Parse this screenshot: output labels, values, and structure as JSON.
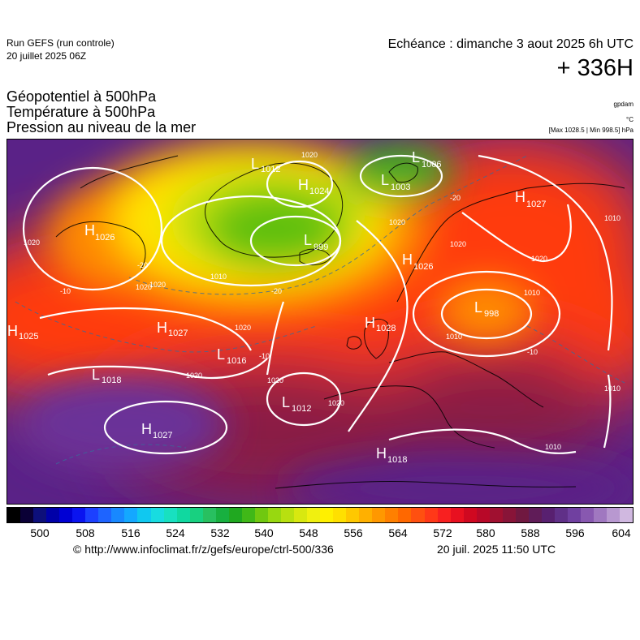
{
  "header": {
    "run_title": "Run GEFS (run controle)",
    "run_date": "20 juillet 2025 06Z",
    "valid_line": "Echéance : dimanche 3 aout 2025 6h UTC",
    "lead_time": "+ 336H"
  },
  "parameters": [
    {
      "label": "Géopotentiel à 500hPa",
      "unit": "gpdam"
    },
    {
      "label": "Température à 500hPa",
      "unit": "°C"
    },
    {
      "label": "Pression au niveau de la mer",
      "unit": "[Max 1028.5 | Min 998.5] hPa"
    }
  ],
  "pressure_extremes": {
    "max": 1028.5,
    "min": 998.5
  },
  "colorbar": {
    "ticks": [
      "500",
      "508",
      "516",
      "524",
      "532",
      "540",
      "548",
      "556",
      "564",
      "572",
      "580",
      "588",
      "596",
      "604"
    ],
    "colors": [
      "#000000",
      "#0a0036",
      "#0d0f7a",
      "#0000a8",
      "#0000d4",
      "#0a14f0",
      "#1c40ff",
      "#1e64ff",
      "#1888ff",
      "#14a8ff",
      "#10c8f0",
      "#18dce0",
      "#18e0c0",
      "#10d8a0",
      "#18d080",
      "#28c060",
      "#18b040",
      "#20a820",
      "#40b818",
      "#70c810",
      "#98d810",
      "#b8e010",
      "#d8e810",
      "#f0f010",
      "#fff000",
      "#ffe000",
      "#ffc800",
      "#ffb000",
      "#ff9800",
      "#ff8000",
      "#ff6800",
      "#ff5010",
      "#ff3818",
      "#f82020",
      "#e81020",
      "#d00820",
      "#b80828",
      "#a01030",
      "#881438",
      "#701840",
      "#601c58",
      "#582070",
      "#603088",
      "#7040a0",
      "#8858b0",
      "#a078c0",
      "#b898d0",
      "#d0b8e0"
    ]
  },
  "map": {
    "pressure_systems": [
      {
        "type": "H",
        "value": "1026"
      },
      {
        "type": "L",
        "value": "1012"
      },
      {
        "type": "H",
        "value": "1024"
      },
      {
        "type": "L",
        "value": "1006"
      },
      {
        "type": "L",
        "value": "1003"
      },
      {
        "type": "L",
        "value": "999"
      },
      {
        "type": "H",
        "value": "1027"
      },
      {
        "type": "H",
        "value": "1026"
      },
      {
        "type": "H",
        "value": "1025"
      },
      {
        "type": "H",
        "value": "1027"
      },
      {
        "type": "H",
        "value": "1028"
      },
      {
        "type": "L",
        "value": "998"
      },
      {
        "type": "L",
        "value": "1016"
      },
      {
        "type": "L",
        "value": "1018"
      },
      {
        "type": "L",
        "value": "1012"
      },
      {
        "type": "H",
        "value": "1027"
      },
      {
        "type": "H",
        "value": "1018"
      }
    ],
    "isobar_labels": [
      "1020",
      "1020",
      "1020",
      "1020",
      "1020",
      "1010",
      "1020",
      "1020",
      "1020",
      "1020",
      "1010",
      "1010",
      "1010",
      "1020",
      "1020",
      "1010",
      "1010"
    ],
    "isotherm_labels": [
      "-20",
      "-20",
      "-10",
      "-10",
      "-10",
      "-20"
    ]
  },
  "footer": {
    "copyright": "© http://www.infoclimat.fr/z/gefs/europe/ctrl-500/336",
    "issued": "20 juil. 2025 11:50 UTC"
  }
}
